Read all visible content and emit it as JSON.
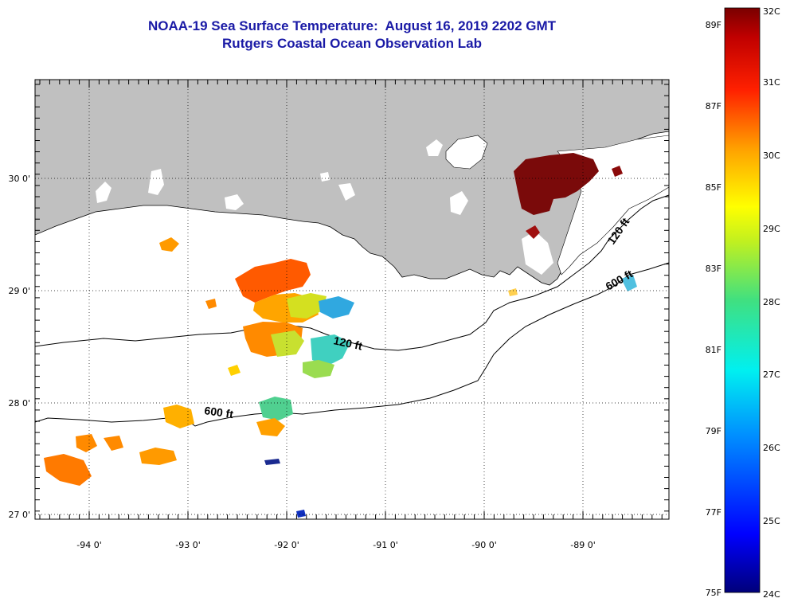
{
  "title": {
    "line1": "NOAA-19 Sea Surface Temperature:  August 16, 2019 2202 GMT",
    "line2": "Rutgers Coastal Ocean Observation Lab"
  },
  "axes": {
    "longitude_labels": [
      "-94 0'",
      "-93 0'",
      "-92 0'",
      "-91 0'",
      "-90 0'",
      "-89 0'"
    ],
    "latitude_labels": [
      "30 0'",
      "29 0'",
      "28 0'",
      "27 0'"
    ]
  },
  "contours": {
    "label_120_west": "120 ft",
    "label_120_east": "120 ft",
    "label_600_west": "600 ft",
    "label_600_east": "600 ft"
  },
  "colorbar": {
    "celsius_labels": [
      "32C",
      "31C",
      "30C",
      "29C",
      "28C",
      "27C",
      "26C",
      "25C",
      "24C"
    ],
    "fahrenheit_labels": [
      "89F",
      "87F",
      "85F",
      "83F",
      "81F",
      "79F",
      "77F",
      "75F"
    ],
    "range_celsius": [
      24,
      32
    ],
    "range_fahrenheit": [
      75,
      89.6
    ]
  },
  "colors": {
    "title": "#1a1aa6",
    "land": "#c0c0c0",
    "cloud": "#ffffff"
  }
}
